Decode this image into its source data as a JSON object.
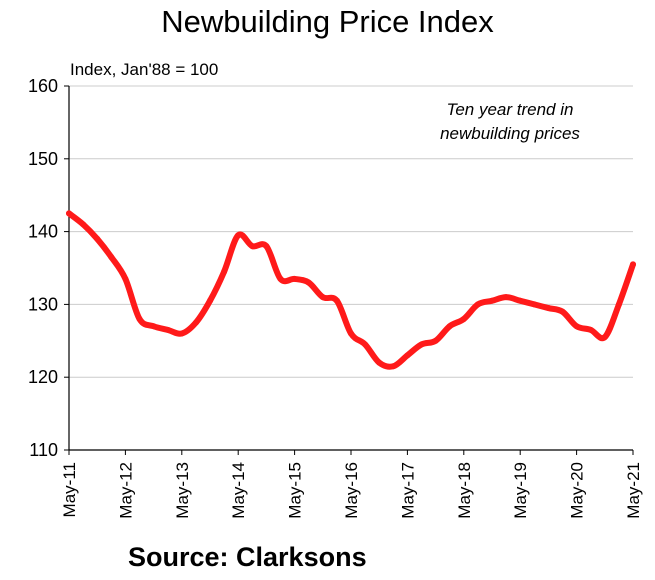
{
  "title": "Newbuilding Price Index",
  "subtitle": "Index, Jan'88 = 100",
  "annotation_line1": "Ten year trend in",
  "annotation_line2": "newbuilding prices",
  "source": "Source: Clarksons",
  "colors": {
    "line": "#ff1a1a",
    "grid": "#cccccc",
    "axis": "#000000"
  },
  "chart_data": {
    "type": "line",
    "title": "Newbuilding Price Index",
    "ylabel": "Index, Jan'88 = 100",
    "xlabel": "",
    "ylim": [
      110,
      160
    ],
    "yticks": [
      110,
      120,
      130,
      140,
      150,
      160
    ],
    "xticks": [
      "May-11",
      "May-12",
      "May-13",
      "May-14",
      "May-15",
      "May-16",
      "May-17",
      "May-18",
      "May-19",
      "May-20",
      "May-21"
    ],
    "grid": true,
    "series": [
      {
        "x": [
          "2011-05",
          "2011-08",
          "2011-11",
          "2012-02",
          "2012-05",
          "2012-08",
          "2012-11",
          "2013-02",
          "2013-05",
          "2013-08",
          "2013-11",
          "2014-02",
          "2014-05",
          "2014-08",
          "2014-11",
          "2015-02",
          "2015-05",
          "2015-08",
          "2015-11",
          "2016-02",
          "2016-05",
          "2016-08",
          "2016-11",
          "2017-02",
          "2017-05",
          "2017-08",
          "2017-11",
          "2018-02",
          "2018-05",
          "2018-08",
          "2018-11",
          "2019-02",
          "2019-05",
          "2019-08",
          "2019-11",
          "2020-02",
          "2020-05",
          "2020-08",
          "2020-11",
          "2021-02",
          "2021-05"
        ],
        "values": [
          142.5,
          141,
          139,
          136.5,
          133.5,
          128,
          127,
          126.5,
          126,
          127.5,
          130.5,
          134.5,
          139.5,
          138,
          138,
          133.5,
          133.5,
          133,
          131,
          130.5,
          126,
          124.5,
          122,
          121.5,
          123,
          124.5,
          125,
          127,
          128,
          130,
          130.5,
          131,
          130.5,
          130,
          129.5,
          129,
          127,
          126.5,
          125.5,
          130,
          135.5
        ]
      }
    ]
  }
}
